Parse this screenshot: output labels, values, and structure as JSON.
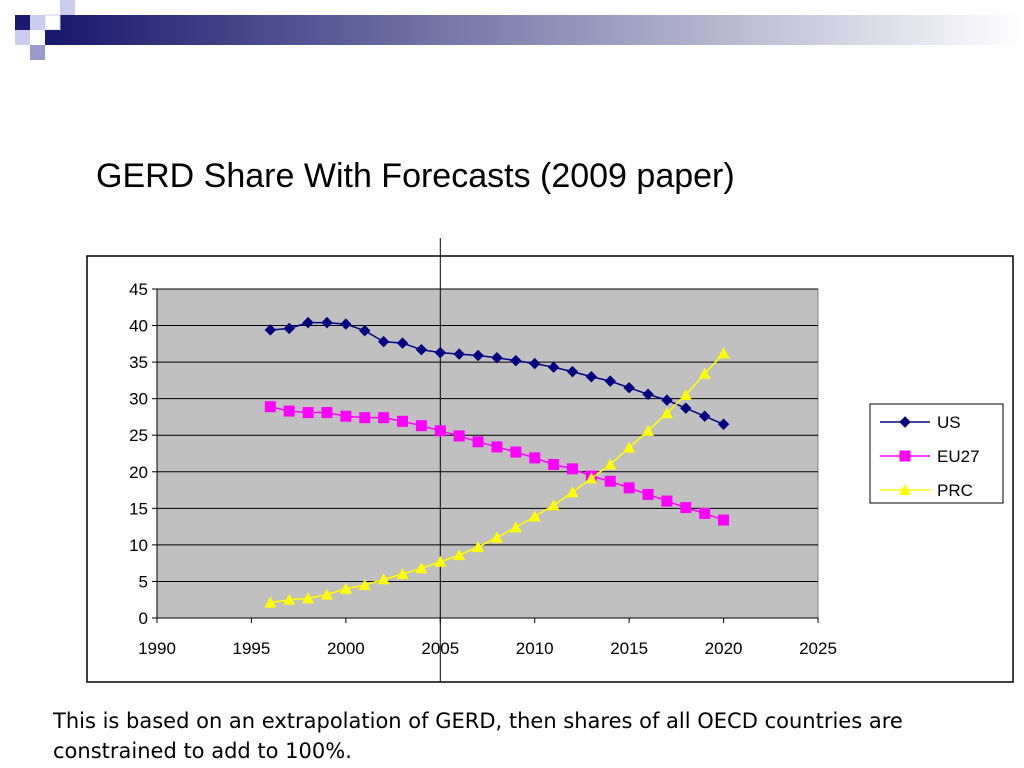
{
  "slide": {
    "title": "GERD Share With Forecasts (2009 paper)",
    "note": "This is based on an extrapolation of GERD, then shares of all OECD countries are constrained to add to 100%."
  },
  "colors": {
    "plot_background": "#c0c0c0",
    "deco_dark": "#1a1a6e",
    "deco_light": "#9999cc"
  },
  "chart_data": {
    "type": "line",
    "title": "",
    "xlabel": "",
    "ylabel": "",
    "xlim": [
      1990,
      2025
    ],
    "ylim": [
      0,
      45
    ],
    "x_ticks": [
      1990,
      1995,
      2000,
      2005,
      2010,
      2015,
      2020,
      2025
    ],
    "y_ticks": [
      0,
      5,
      10,
      15,
      20,
      25,
      30,
      35,
      40,
      45
    ],
    "grid": "horizontal",
    "legend_position": "right",
    "reference_line_x": 2005,
    "x": [
      1996,
      1997,
      1998,
      1999,
      2000,
      2001,
      2002,
      2003,
      2004,
      2005,
      2006,
      2007,
      2008,
      2009,
      2010,
      2011,
      2012,
      2013,
      2014,
      2015,
      2016,
      2017,
      2018,
      2019,
      2020
    ],
    "series": [
      {
        "name": "US",
        "color": "#000080",
        "marker": "diamond",
        "values": [
          39.4,
          39.6,
          40.4,
          40.4,
          40.2,
          39.3,
          37.8,
          37.6,
          36.7,
          36.3,
          36.1,
          35.9,
          35.6,
          35.2,
          34.8,
          34.3,
          33.7,
          33.0,
          32.4,
          31.5,
          30.6,
          29.8,
          28.7,
          27.6,
          26.5
        ]
      },
      {
        "name": "EU27",
        "color": "#ff00ff",
        "marker": "square",
        "values": [
          28.9,
          28.3,
          28.1,
          28.1,
          27.6,
          27.4,
          27.4,
          26.9,
          26.3,
          25.6,
          24.9,
          24.1,
          23.4,
          22.7,
          21.9,
          21.0,
          20.4,
          19.4,
          18.7,
          17.8,
          16.9,
          16.0,
          15.1,
          14.3,
          13.4
        ]
      },
      {
        "name": "PRC",
        "color": "#ffff00",
        "marker": "triangle",
        "values": [
          2.1,
          2.5,
          2.7,
          3.2,
          4.0,
          4.5,
          5.3,
          6.0,
          6.8,
          7.7,
          8.6,
          9.7,
          11.0,
          12.4,
          13.9,
          15.4,
          17.2,
          19.1,
          21.0,
          23.3,
          25.6,
          28.0,
          30.5,
          33.4,
          36.2
        ]
      }
    ]
  }
}
